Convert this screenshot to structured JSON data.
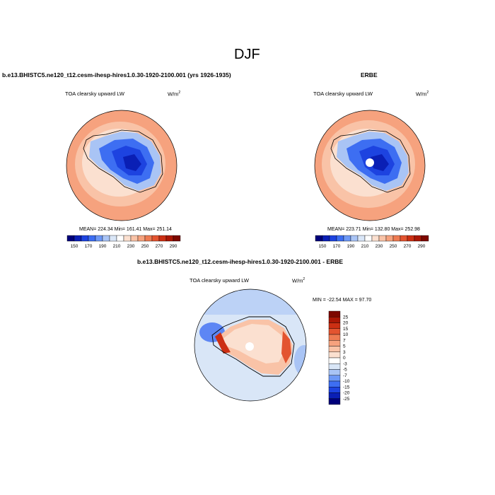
{
  "page": {
    "title": "DJF",
    "left_header": "b.e13.BHISTC5.ne120_t12.cesm-ihesp-hires1.0.30-1920-2100.001 (yrs 1926-1935)",
    "right_header": "ERBE",
    "bottom_header": "b.e13.BHISTC5.ne120_t12.cesm-ihesp-hires1.0.30-1920-2100.001 - ERBE"
  },
  "colors": {
    "abs_scale": [
      "#00007a",
      "#0a1fb5",
      "#1d43e0",
      "#3d6ef2",
      "#6d98f6",
      "#a9c4f5",
      "#d9e6f7",
      "#ffffff",
      "#fbe0d0",
      "#f9c3a7",
      "#f6a27e",
      "#ee7b52",
      "#e35430",
      "#cc2f13",
      "#aa1705",
      "#7d0800"
    ],
    "diff_scale": [
      "#00007a",
      "#0a1fb5",
      "#1d43e0",
      "#3d6ef2",
      "#6d98f6",
      "#a9c4f5",
      "#d9e6f7",
      "#ffffff",
      "#fbe0d0",
      "#f9c3a7",
      "#f6a27e",
      "#ee7b52",
      "#e35430",
      "#cc2f13",
      "#aa1705",
      "#7d0800"
    ],
    "land_outline": "#000000"
  },
  "chart_data": [
    {
      "type": "heatmap",
      "projection": "south-polar-stereographic",
      "title": "TOA clearsky upward LW",
      "units": "W/m",
      "units_sup": "2",
      "stats": {
        "mean": "224.34",
        "min": "161.41",
        "max": "251.14"
      },
      "stats_text": "MEAN= 224.34  Min= 161.41  Max= 251.14",
      "colorbar": {
        "orientation": "horizontal",
        "levels": [
          150,
          160,
          170,
          180,
          190,
          200,
          210,
          220,
          230,
          240,
          250,
          260,
          270,
          280,
          290
        ],
        "tick_labels": [
          "150",
          "170",
          "190",
          "210",
          "230",
          "250",
          "270",
          "290"
        ]
      }
    },
    {
      "type": "heatmap",
      "projection": "south-polar-stereographic",
      "title": "TOA clearsky upward LW",
      "units": "W/m",
      "units_sup": "2",
      "stats": {
        "mean": "223.71",
        "min": "132.80",
        "max": "252.98"
      },
      "stats_text": "MEAN= 223.71  Min= 132.80  Max= 252.98",
      "colorbar": {
        "orientation": "horizontal",
        "levels": [
          150,
          160,
          170,
          180,
          190,
          200,
          210,
          220,
          230,
          240,
          250,
          260,
          270,
          280,
          290
        ],
        "tick_labels": [
          "150",
          "170",
          "190",
          "210",
          "230",
          "250",
          "270",
          "290"
        ]
      }
    },
    {
      "type": "heatmap",
      "projection": "south-polar-stereographic",
      "title": "TOA clearsky upward LW",
      "units": "W/m",
      "units_sup": "2",
      "stats": {
        "min": "-22.54",
        "max": "97.70"
      },
      "stats_text": "MIN = -22.54 MAX =  97.70",
      "colorbar": {
        "orientation": "vertical",
        "tick_labels": [
          "25",
          "20",
          "15",
          "10",
          "7",
          "5",
          "3",
          "0",
          "-3",
          "-5",
          "-7",
          "-10",
          "-15",
          "-20",
          "-25"
        ]
      }
    }
  ]
}
